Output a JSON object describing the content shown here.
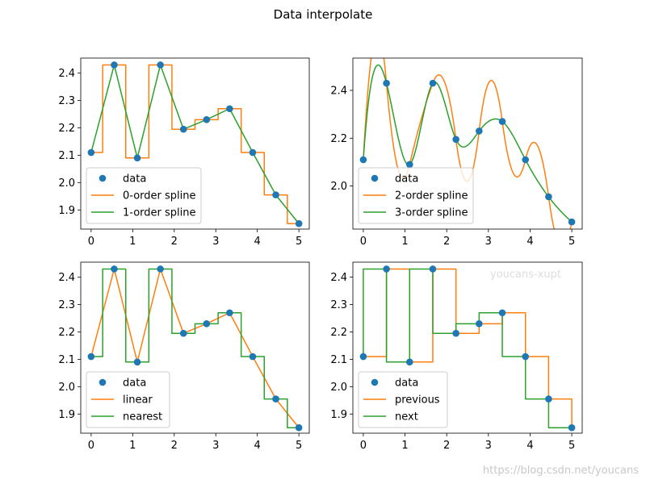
{
  "figure": {
    "title": "Data interpolate",
    "watermark_inner": "youcans-xupt",
    "watermark_corner": "https://blog.csdn.net/youcans"
  },
  "colors": {
    "data": "#1f77b4",
    "series1": "#ff7f0e",
    "series2": "#2ca02c",
    "watermark_inner": "#dddddd",
    "watermark_corner": "#c8c8c8"
  },
  "chart_data": [
    {
      "type": "line",
      "panel": "top-left",
      "x": [
        0,
        0.5556,
        1.1111,
        1.6667,
        2.2222,
        2.7778,
        3.3333,
        3.8889,
        4.4444,
        5.0
      ],
      "y": [
        2.11,
        2.43,
        2.09,
        2.43,
        2.195,
        2.23,
        2.27,
        2.11,
        1.955,
        1.85
      ],
      "series": [
        {
          "name": "0-order spline",
          "kind": "nearest"
        },
        {
          "name": "1-order spline",
          "kind": "linear"
        }
      ],
      "legend": [
        "data",
        "0-order spline",
        "1-order spline"
      ],
      "legend_loc": "lower-left",
      "xlim": [
        -0.25,
        5.25
      ],
      "ylim": [
        1.83,
        2.455
      ],
      "xticks": [
        0,
        1,
        2,
        3,
        4,
        5
      ],
      "yticks": [
        1.9,
        2.0,
        2.1,
        2.2,
        2.3,
        2.4
      ],
      "ytick_labels": [
        "1.9",
        "2.0",
        "2.1",
        "2.2",
        "2.3",
        "2.4"
      ]
    },
    {
      "type": "line",
      "panel": "top-right",
      "x": [
        0,
        0.5556,
        1.1111,
        1.6667,
        2.2222,
        2.7778,
        3.3333,
        3.8889,
        4.4444,
        5.0
      ],
      "y": [
        2.11,
        2.43,
        2.09,
        2.43,
        2.195,
        2.23,
        2.27,
        2.11,
        1.955,
        1.85
      ],
      "series": [
        {
          "name": "2-order spline",
          "kind": "quadratic"
        },
        {
          "name": "3-order spline",
          "kind": "cubic"
        }
      ],
      "legend": [
        "data",
        "2-order spline",
        "3-order spline"
      ],
      "legend_loc": "lower-left",
      "xlim": [
        -0.25,
        5.25
      ],
      "ylim": [
        1.82,
        2.535
      ],
      "xticks": [
        0,
        1,
        2,
        3,
        4,
        5
      ],
      "yticks": [
        2.0,
        2.2,
        2.4
      ],
      "ytick_labels": [
        "2.0",
        "2.2",
        "2.4"
      ]
    },
    {
      "type": "line",
      "panel": "bottom-left",
      "x": [
        0,
        0.5556,
        1.1111,
        1.6667,
        2.2222,
        2.7778,
        3.3333,
        3.8889,
        4.4444,
        5.0
      ],
      "y": [
        2.11,
        2.43,
        2.09,
        2.43,
        2.195,
        2.23,
        2.27,
        2.11,
        1.955,
        1.85
      ],
      "series": [
        {
          "name": "linear",
          "kind": "linear-dense"
        },
        {
          "name": "nearest",
          "kind": "nearest"
        }
      ],
      "legend": [
        "data",
        "linear",
        "nearest"
      ],
      "legend_loc": "lower-left",
      "xlim": [
        -0.25,
        5.25
      ],
      "ylim": [
        1.83,
        2.455
      ],
      "xticks": [
        0,
        1,
        2,
        3,
        4,
        5
      ],
      "yticks": [
        1.9,
        2.0,
        2.1,
        2.2,
        2.3,
        2.4
      ],
      "ytick_labels": [
        "1.9",
        "2.0",
        "2.1",
        "2.2",
        "2.3",
        "2.4"
      ]
    },
    {
      "type": "line",
      "panel": "bottom-right",
      "x": [
        0,
        0.5556,
        1.1111,
        1.6667,
        2.2222,
        2.7778,
        3.3333,
        3.8889,
        4.4444,
        5.0
      ],
      "y": [
        2.11,
        2.43,
        2.09,
        2.43,
        2.195,
        2.23,
        2.27,
        2.11,
        1.955,
        1.85
      ],
      "series": [
        {
          "name": "previous",
          "kind": "previous"
        },
        {
          "name": "next",
          "kind": "next"
        }
      ],
      "legend": [
        "data",
        "previous",
        "next"
      ],
      "legend_loc": "lower-left",
      "xlim": [
        -0.25,
        5.25
      ],
      "ylim": [
        1.83,
        2.455
      ],
      "xticks": [
        0,
        1,
        2,
        3,
        4,
        5
      ],
      "yticks": [
        1.9,
        2.0,
        2.1,
        2.2,
        2.3,
        2.4
      ],
      "ytick_labels": [
        "1.9",
        "2.0",
        "2.1",
        "2.2",
        "2.3",
        "2.4"
      ]
    }
  ]
}
